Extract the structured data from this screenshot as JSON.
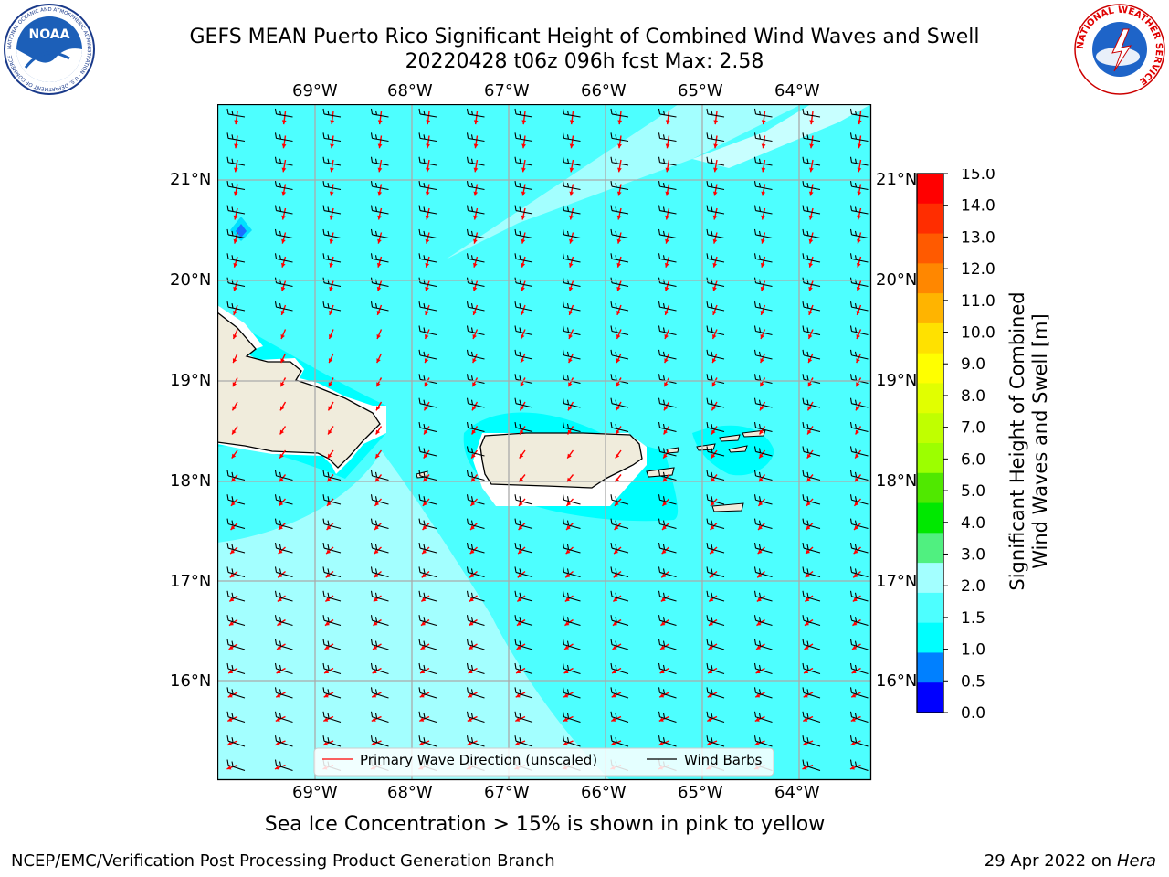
{
  "title": {
    "line1": "GEFS MEAN Puerto Rico Significant Height of Combined Wind Waves and Swell",
    "line2": "20220428 t06z 096h fcst   Max: 2.58"
  },
  "logos": {
    "left": "NOAA",
    "left_ring": "NATIONAL OCEANIC AND ATMOSPHERIC ADMINISTRATION · U.S. DEPARTMENT OF COMMERCE",
    "right_ring": "NATIONAL WEATHER SERVICE"
  },
  "map": {
    "lon_ticks": [
      "69°W",
      "68°W",
      "67°W",
      "66°W",
      "65°W",
      "64°W"
    ],
    "lat_ticks": [
      "21°N",
      "20°N",
      "19°N",
      "18°N",
      "17°N",
      "16°N"
    ],
    "colors": {
      "ocean_base": "#4dffff",
      "ocean_light": "#a3ffff",
      "ocean_lighter": "#c8ffff",
      "ocean_dark": "#00ffff",
      "land": "#f0ecdc",
      "wave_arrow": "#ff0000",
      "wind_barb": "#000000",
      "grid": "#aaaaaa"
    }
  },
  "legend": {
    "wave_label": "Primary Wave Direction (unscaled)",
    "barb_label": "Wind Barbs"
  },
  "colorbar": {
    "label_line1": "Significant Height of Combined",
    "label_line2": "Wind Waves and Swell [m]",
    "ticks": [
      "15.0",
      "14.0",
      "13.0",
      "12.0",
      "11.0",
      "10.0",
      "9.0",
      "8.0",
      "7.0",
      "6.0",
      "5.0",
      "4.0",
      "3.0",
      "2.0",
      "1.5",
      "1.0",
      "0.5",
      "0.0"
    ],
    "colors": [
      "#ff0000",
      "#ff2d00",
      "#ff5a00",
      "#ff8700",
      "#ffb400",
      "#ffe100",
      "#ffff00",
      "#e1ff00",
      "#c0ff00",
      "#9cff00",
      "#50e800",
      "#00e800",
      "#50f080",
      "#a3ffff",
      "#4dffff",
      "#00ffff",
      "#0080ff",
      "#0000ff"
    ]
  },
  "ice_note": "Sea Ice Concentration > 15% is shown in pink to yellow",
  "footer": {
    "left": "NCEP/EMC/Verification Post Processing Product Generation Branch",
    "right_date": "29 Apr 2022 on ",
    "right_host": "Hera"
  }
}
